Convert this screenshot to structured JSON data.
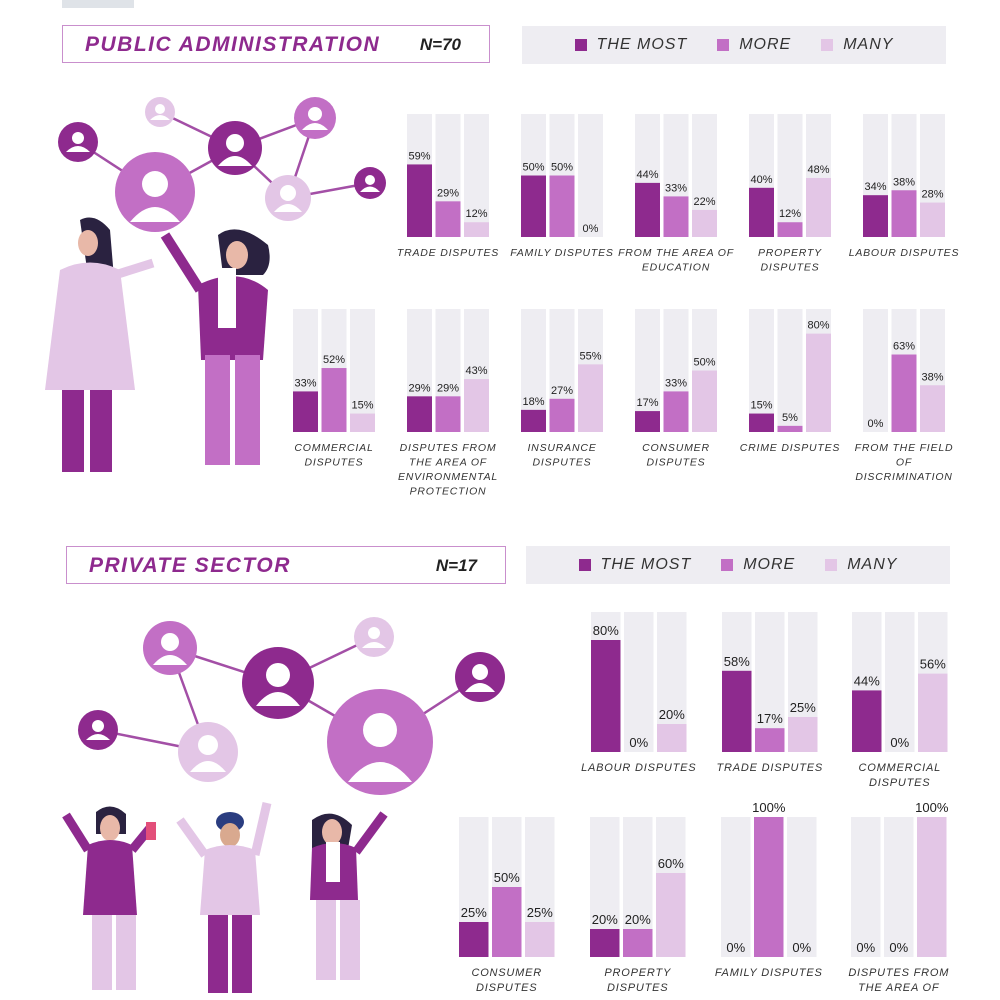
{
  "colors": {
    "most": "#8e2a8e",
    "more": "#c26fc5",
    "many": "#e3c6e6",
    "track": "#eeedf2",
    "accent": "#8e2a8e"
  },
  "legend": {
    "most": "THE MOST",
    "more": "MORE",
    "many": "MANY"
  },
  "sections": [
    {
      "title": "PUBLIC ADMINISTRATION",
      "n": "N=70"
    },
    {
      "title": "PRIVATE SECTOR",
      "n": "N=17"
    }
  ],
  "chart_data": [
    {
      "type": "bar",
      "section": "PUBLIC ADMINISTRATION",
      "series_names": [
        "THE MOST",
        "MORE",
        "MANY"
      ],
      "ylim": [
        0,
        100
      ],
      "groups": [
        {
          "label": "TRADE DISPUTES",
          "values": [
            59,
            29,
            12
          ]
        },
        {
          "label": "FAMILY DISPUTES",
          "values": [
            50,
            50,
            0
          ]
        },
        {
          "label": "FROM THE AREA OF EDUCATION",
          "values": [
            44,
            33,
            22
          ]
        },
        {
          "label": "PROPERTY DISPUTES",
          "values": [
            40,
            12,
            48
          ]
        },
        {
          "label": "LABOUR DISPUTES",
          "values": [
            34,
            38,
            28
          ]
        },
        {
          "label": "COMMERCIAL DISPUTES",
          "values": [
            33,
            52,
            15
          ]
        },
        {
          "label": "DISPUTES FROM THE AREA OF ENVIRONMENTAL PROTECTION",
          "values": [
            29,
            29,
            43
          ]
        },
        {
          "label": "INSURANCE DISPUTES",
          "values": [
            18,
            27,
            55
          ]
        },
        {
          "label": "CONSUMER DISPUTES",
          "values": [
            17,
            33,
            50
          ]
        },
        {
          "label": "CRIME DISPUTES",
          "values": [
            15,
            5,
            80
          ]
        },
        {
          "label": "FROM THE FIELD OF DISCRIMINATION",
          "values": [
            0,
            63,
            38
          ]
        }
      ]
    },
    {
      "type": "bar",
      "section": "PRIVATE SECTOR",
      "series_names": [
        "THE MOST",
        "MORE",
        "MANY"
      ],
      "ylim": [
        0,
        100
      ],
      "groups": [
        {
          "label": "LABOUR DISPUTES",
          "values": [
            80,
            0,
            20
          ]
        },
        {
          "label": "TRADE DISPUTES",
          "values": [
            58,
            17,
            25
          ]
        },
        {
          "label": "COMMERCIAL DISPUTES",
          "values": [
            44,
            0,
            56
          ]
        },
        {
          "label": "CONSUMER DISPUTES",
          "values": [
            25,
            50,
            25
          ]
        },
        {
          "label": "PROPERTY DISPUTES",
          "values": [
            20,
            20,
            60
          ]
        },
        {
          "label": "FAMILY DISPUTES",
          "values": [
            0,
            100,
            0
          ]
        },
        {
          "label": "DISPUTES FROM THE AREA OF",
          "values": [
            0,
            0,
            100
          ]
        }
      ]
    }
  ]
}
